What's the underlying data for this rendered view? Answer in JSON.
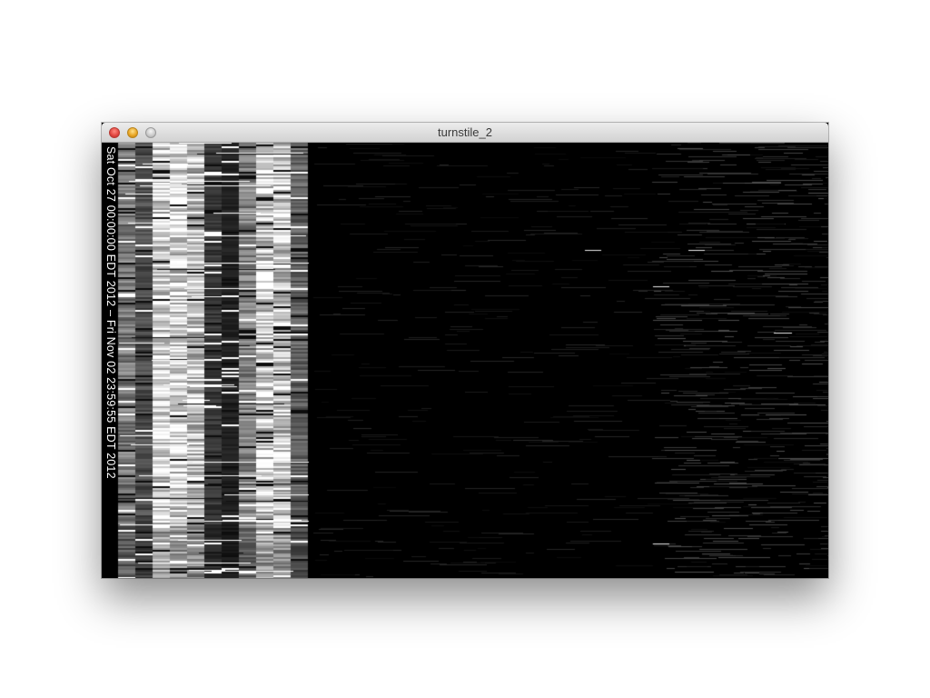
{
  "window": {
    "title": "turnstile_2"
  },
  "visualization": {
    "range_label": "Sat Oct 27 00:00:00 EDT 2012 – Fri Nov 02 23:59:55 EDT 2012",
    "colors": {
      "background": "#000000",
      "foreground": "#ffffff"
    }
  }
}
